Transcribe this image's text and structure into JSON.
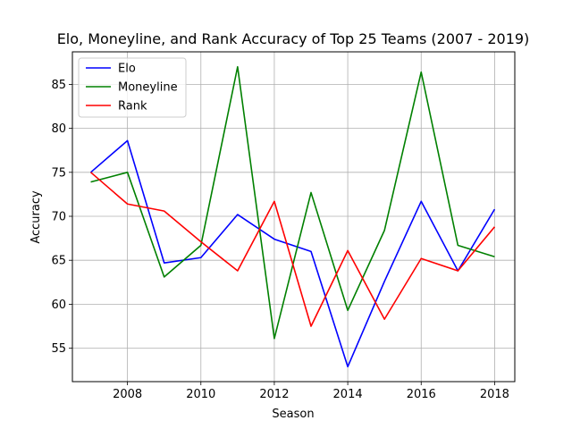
{
  "chart_data": {
    "type": "line",
    "title": "Elo, Moneyline, and Rank Accuracy of Top 25 Teams (2007 - 2019)",
    "xlabel": "Season",
    "ylabel": "Accuracy",
    "xlim": [
      2006.5,
      2018.55
    ],
    "ylim": [
      51.2,
      88.7
    ],
    "x": [
      2007,
      2008,
      2009,
      2010,
      2011,
      2012,
      2013,
      2014,
      2015,
      2016,
      2017,
      2018
    ],
    "xticks": [
      2008,
      2010,
      2012,
      2014,
      2016,
      2018
    ],
    "xtick_labels": [
      "2008",
      "2010",
      "2012",
      "2014",
      "2016",
      "2018"
    ],
    "yticks": [
      55,
      60,
      65,
      70,
      75,
      80,
      85
    ],
    "ytick_labels": [
      "55",
      "60",
      "65",
      "70",
      "75",
      "80",
      "85"
    ],
    "grid": true,
    "legend_position": "top-left",
    "series": [
      {
        "name": "Elo",
        "color": "#0000ff",
        "values": [
          75.0,
          78.6,
          64.7,
          65.3,
          70.2,
          67.4,
          66.0,
          52.9,
          62.6,
          71.7,
          63.8,
          70.8
        ]
      },
      {
        "name": "Moneyline",
        "color": "#008000",
        "values": [
          73.9,
          75.0,
          63.1,
          66.7,
          87.0,
          56.1,
          72.7,
          59.3,
          68.4,
          86.4,
          66.7,
          65.4
        ]
      },
      {
        "name": "Rank",
        "color": "#ff0000",
        "values": [
          75.0,
          71.4,
          70.6,
          67.1,
          63.8,
          71.7,
          57.5,
          66.1,
          58.3,
          65.2,
          63.8,
          68.8
        ]
      }
    ]
  }
}
